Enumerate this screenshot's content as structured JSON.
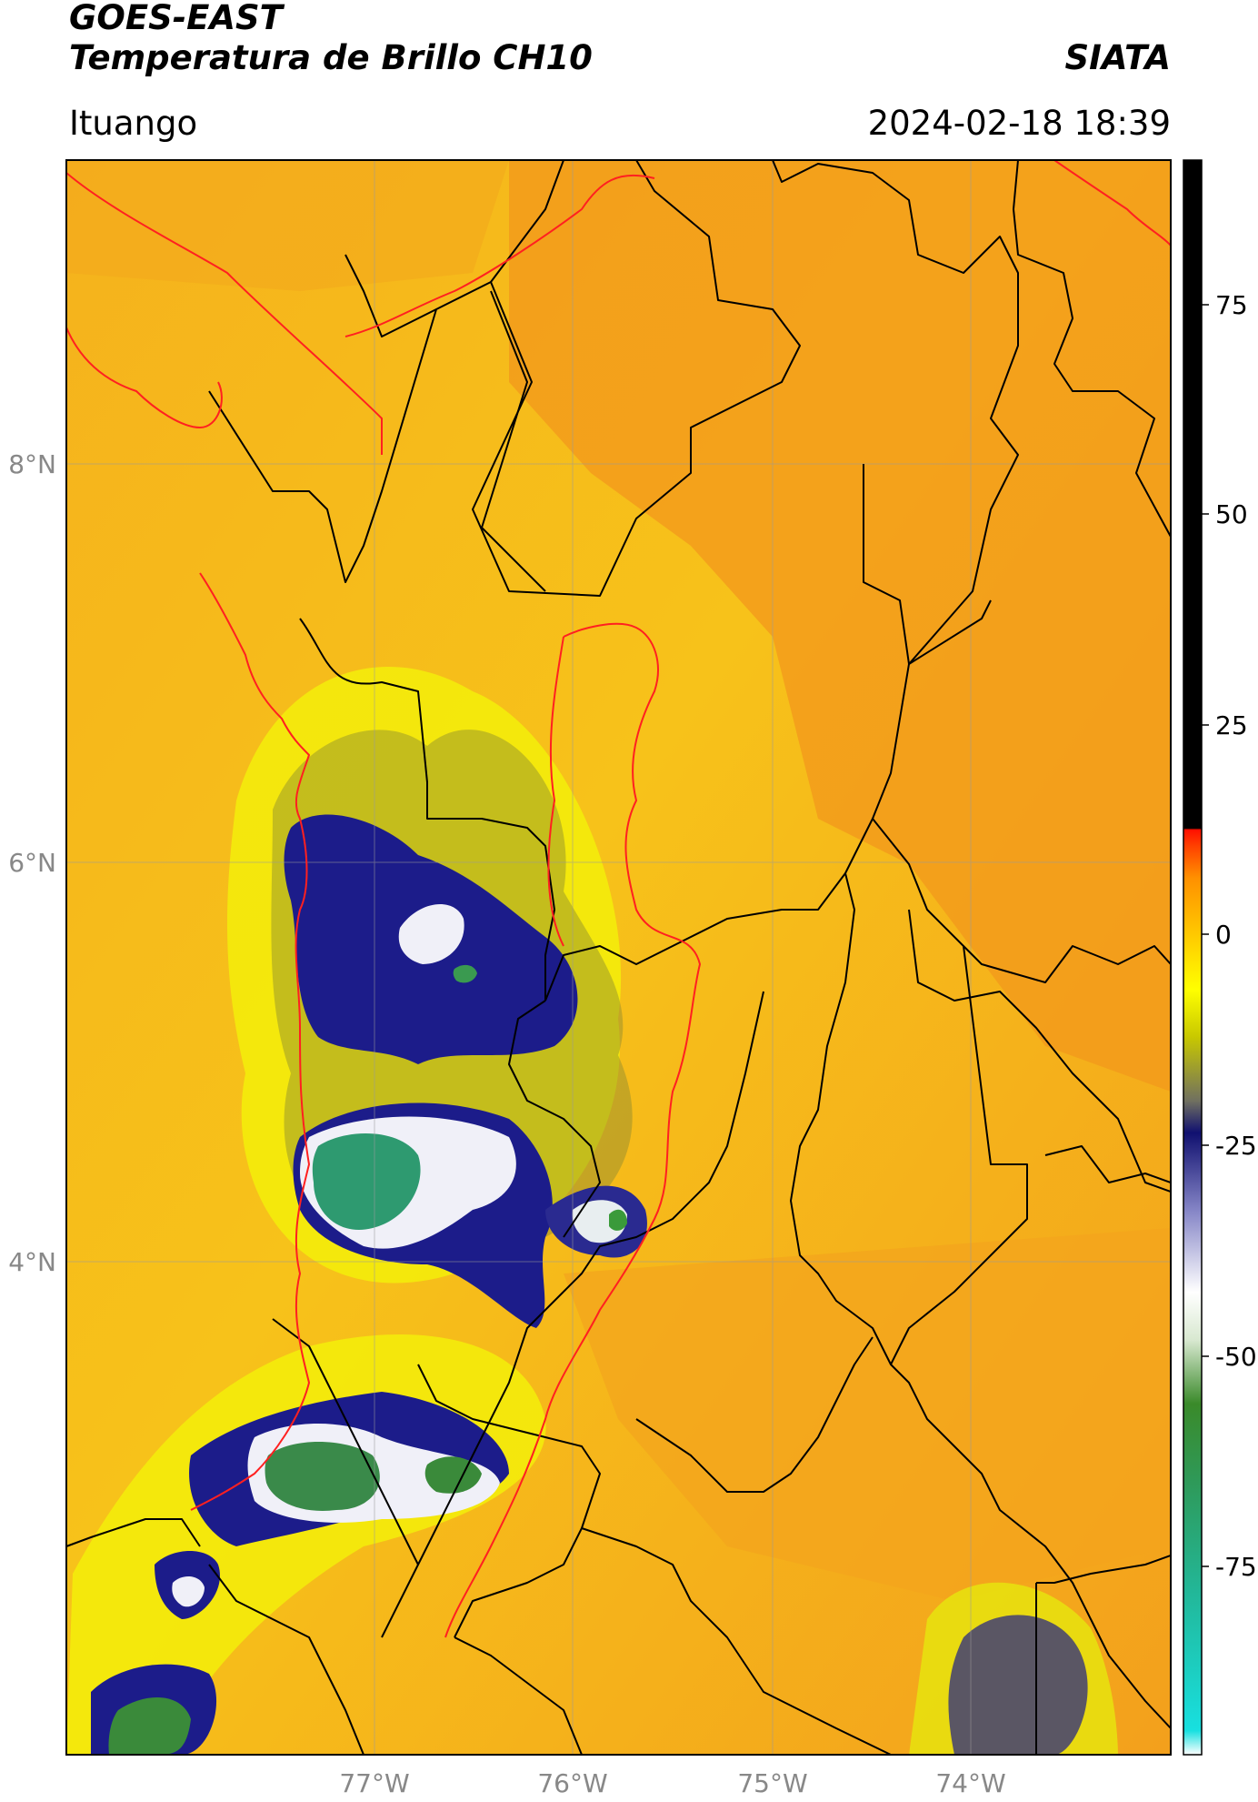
{
  "header": {
    "satellite": "GOES-EAST",
    "product": "Temperatura de Brillo CH10",
    "brand": "SIATA",
    "location": "Ituango",
    "timestamp": "2024-02-18 18:39"
  },
  "map": {
    "lon_labels": [
      "77°W",
      "76°W",
      "75°W",
      "74°W"
    ],
    "lat_labels": [
      "8°N",
      "6°N",
      "4°N"
    ],
    "colors": {
      "warm": "#f39a1c",
      "mid": "#f7c01a",
      "yellow": "#f3ee0a",
      "olive": "#7a7e3a",
      "navy": "#1c1c8a",
      "white": "#f2f2f8",
      "green": "#2e9a66",
      "borders": "#000000",
      "coast": "#ff2020",
      "grid": "#9a9a9a"
    }
  },
  "colorbar": {
    "ticks": [
      "75",
      "50",
      "25",
      "0",
      "-25",
      "-50",
      "-75"
    ]
  }
}
